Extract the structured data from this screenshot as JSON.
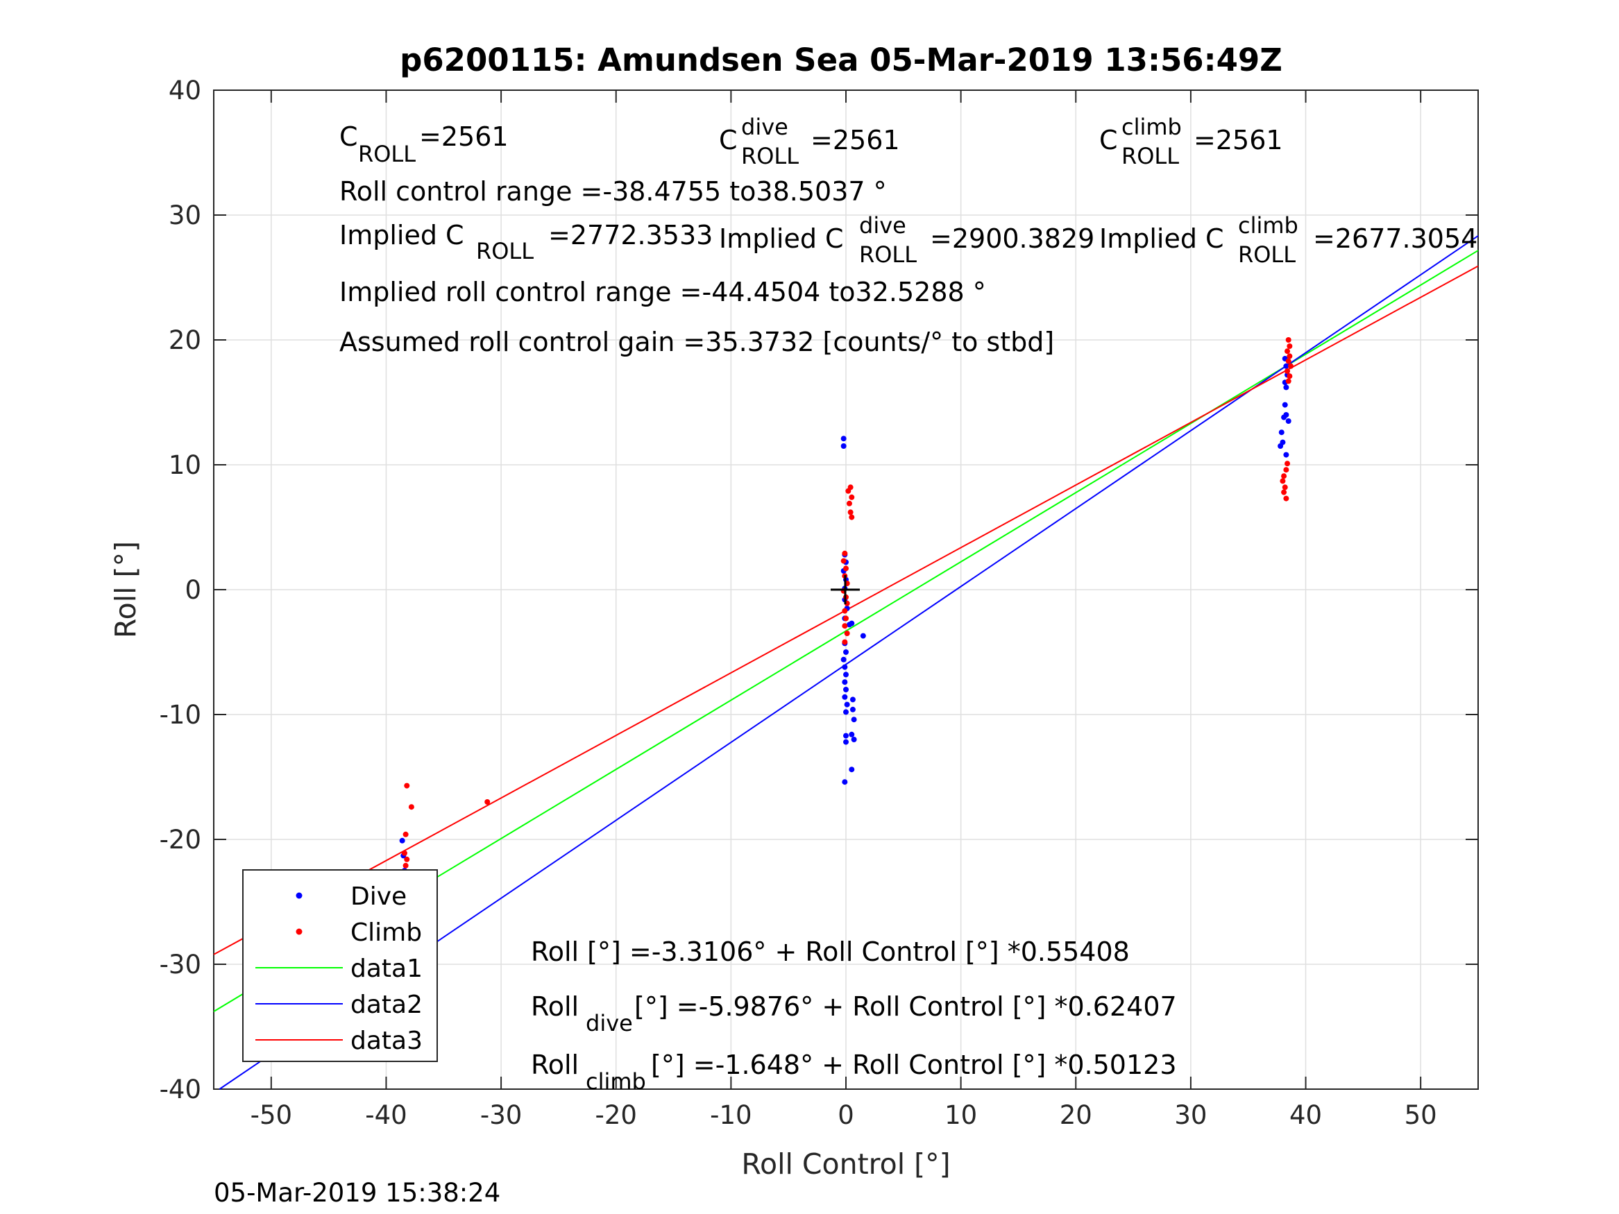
{
  "chart_data": {
    "type": "scatter",
    "title": "p6200115: Amundsen Sea 05-Mar-2019 13:56:49Z",
    "xlabel": "Roll Control [°]",
    "ylabel": "Roll [°]",
    "xlim": [
      -55,
      55
    ],
    "ylim": [
      -40,
      40
    ],
    "xticks": [
      "-50",
      "-40",
      "-30",
      "-20",
      "-10",
      "0",
      "10",
      "20",
      "30",
      "40",
      "50"
    ],
    "yticks": [
      "-40",
      "-30",
      "-20",
      "-10",
      "0",
      "10",
      "20",
      "30",
      "40"
    ],
    "grid": true,
    "legend_position": "bottom-left",
    "legend": [
      {
        "label": "Dive",
        "kind": "marker",
        "color": "#0000ff"
      },
      {
        "label": "Climb",
        "kind": "marker",
        "color": "#ff0000"
      },
      {
        "label": "data1",
        "kind": "line",
        "color": "#00ff00"
      },
      {
        "label": "data2",
        "kind": "line",
        "color": "#0000ff"
      },
      {
        "label": "data3",
        "kind": "line",
        "color": "#ff0000"
      }
    ],
    "fit_lines": [
      {
        "name": "data1",
        "color": "#00ff00",
        "intercept": -3.3106,
        "slope": 0.55408
      },
      {
        "name": "data2",
        "color": "#0000ff",
        "intercept": -5.9876,
        "slope": 0.62407
      },
      {
        "name": "data3",
        "color": "#ff0000",
        "intercept": -1.648,
        "slope": 0.50123
      }
    ],
    "series": [
      {
        "name": "Dive",
        "color": "#0000ff",
        "points": [
          [
            -38.6,
            -20.1
          ],
          [
            -38.5,
            -21.3
          ],
          [
            -38.4,
            -22.5
          ],
          [
            -38.6,
            -24.0
          ],
          [
            -38.5,
            -25.2
          ],
          [
            -38.4,
            -26.5
          ],
          [
            -38.6,
            -27.8
          ],
          [
            -38.2,
            -28.3
          ],
          [
            -38.5,
            -29.0
          ],
          [
            -38.7,
            -30.1
          ],
          [
            -38.4,
            -30.6
          ],
          [
            -38.5,
            -31.8
          ],
          [
            -38.6,
            -32.4
          ],
          [
            -38.4,
            -33.0
          ],
          [
            -38.5,
            -33.5
          ],
          [
            -38.6,
            -34.1
          ],
          [
            -38.4,
            -34.7
          ],
          [
            -38.5,
            -35.0
          ],
          [
            -0.2,
            12.1
          ],
          [
            -0.2,
            11.5
          ],
          [
            -0.1,
            2.8
          ],
          [
            0.0,
            2.2
          ],
          [
            -0.2,
            1.5
          ],
          [
            0.0,
            0.8
          ],
          [
            -0.1,
            0.1
          ],
          [
            -0.1,
            -0.8
          ],
          [
            0.1,
            -1.5
          ],
          [
            -0.1,
            -2.3
          ],
          [
            0.3,
            -2.8
          ],
          [
            0.5,
            -2.7
          ],
          [
            1.5,
            -3.7
          ],
          [
            -0.1,
            -4.3
          ],
          [
            0.0,
            -5.0
          ],
          [
            -0.2,
            -5.6
          ],
          [
            -0.1,
            -6.2
          ],
          [
            0.0,
            -6.8
          ],
          [
            -0.1,
            -7.4
          ],
          [
            0.0,
            -8.0
          ],
          [
            -0.1,
            -8.6
          ],
          [
            0.1,
            -9.2
          ],
          [
            0.0,
            -9.8
          ],
          [
            0.6,
            -8.8
          ],
          [
            0.6,
            -9.6
          ],
          [
            0.7,
            -10.4
          ],
          [
            0.5,
            -11.6
          ],
          [
            0.7,
            -12.0
          ],
          [
            0.0,
            -11.7
          ],
          [
            0.0,
            -12.2
          ],
          [
            0.5,
            -14.4
          ],
          [
            -0.1,
            -15.4
          ],
          [
            38.2,
            18.5
          ],
          [
            38.3,
            17.9
          ],
          [
            38.4,
            17.2
          ],
          [
            38.2,
            16.6
          ],
          [
            38.3,
            16.2
          ],
          [
            38.2,
            14.8
          ],
          [
            38.3,
            14.0
          ],
          [
            38.5,
            13.5
          ],
          [
            38.1,
            13.8
          ],
          [
            37.9,
            12.6
          ],
          [
            38.0,
            11.8
          ],
          [
            37.8,
            11.5
          ],
          [
            38.3,
            10.8
          ]
        ]
      },
      {
        "name": "Climb",
        "color": "#ff0000",
        "points": [
          [
            -38.2,
            -15.7
          ],
          [
            -37.8,
            -17.4
          ],
          [
            -38.3,
            -19.6
          ],
          [
            -38.4,
            -21.1
          ],
          [
            -38.2,
            -21.6
          ],
          [
            -38.3,
            -22.1
          ],
          [
            -38.5,
            -22.6
          ],
          [
            -38.2,
            -23.1
          ],
          [
            -38.4,
            -23.5
          ],
          [
            -38.3,
            -23.9
          ],
          [
            -38.5,
            -24.3
          ],
          [
            -38.2,
            -24.7
          ],
          [
            -38.4,
            -25.1
          ],
          [
            -38.1,
            -25.9
          ],
          [
            -31.2,
            -17.0
          ],
          [
            0.4,
            8.2
          ],
          [
            0.2,
            7.9
          ],
          [
            0.5,
            7.4
          ],
          [
            0.3,
            6.9
          ],
          [
            0.4,
            6.2
          ],
          [
            0.5,
            5.8
          ],
          [
            -0.1,
            2.9
          ],
          [
            -0.2,
            2.3
          ],
          [
            0.0,
            1.7
          ],
          [
            -0.1,
            1.1
          ],
          [
            0.1,
            0.5
          ],
          [
            -0.2,
            -0.1
          ],
          [
            0.0,
            -0.6
          ],
          [
            0.1,
            -1.1
          ],
          [
            -0.1,
            -1.7
          ],
          [
            0.0,
            -2.3
          ],
          [
            -0.1,
            -2.9
          ],
          [
            0.1,
            -3.5
          ],
          [
            -0.1,
            -4.2
          ],
          [
            38.5,
            20.0
          ],
          [
            38.6,
            19.5
          ],
          [
            38.4,
            19.1
          ],
          [
            38.6,
            18.7
          ],
          [
            38.5,
            18.3
          ],
          [
            38.7,
            17.9
          ],
          [
            38.4,
            17.5
          ],
          [
            38.6,
            17.1
          ],
          [
            38.5,
            16.7
          ],
          [
            38.4,
            10.1
          ],
          [
            38.3,
            9.6
          ],
          [
            38.1,
            9.1
          ],
          [
            38.0,
            8.7
          ],
          [
            38.2,
            8.2
          ],
          [
            38.1,
            7.8
          ],
          [
            38.3,
            7.3
          ]
        ]
      }
    ],
    "annotations": {
      "c_roll": {
        "main": "C",
        "sub": "ROLL",
        "value": "=2561"
      },
      "c_roll_dive": {
        "main": "C",
        "sup": "dive",
        "sub": "ROLL",
        "value": "=2561"
      },
      "c_roll_climb": {
        "main": "C",
        "sup": "climb",
        "sub": "ROLL",
        "value": "=2561"
      },
      "roll_control_range": "Roll control range =-38.4755 to38.5037 °",
      "implied_c_roll": {
        "main": "Implied C",
        "sub": "ROLL",
        "value": "=2772.3533"
      },
      "implied_c_roll_dive": {
        "main": "Implied C",
        "sup": "dive",
        "sub": "ROLL",
        "value": "=2900.3829"
      },
      "implied_c_roll_climb": {
        "main": "Implied C",
        "sup": "climb",
        "sub": "ROLL",
        "value": "=2677.3054"
      },
      "implied_range": "Implied roll control range =-44.4504 to32.5288 °",
      "gain": "Assumed roll control gain =35.3732 [counts/° to stbd]",
      "eq_all": "Roll [°] =-3.3106° + Roll Control [°] *0.55408",
      "eq_dive": {
        "main": "Roll",
        "sub": "dive",
        "rest": " [°] =-5.9876° + Roll Control [°] *0.62407"
      },
      "eq_climb": {
        "main": "Roll",
        "sub": "climb",
        "rest": " [°] =-1.648° + Roll Control [°] *0.50123"
      }
    },
    "timestamp": "05-Mar-2019 15:38:24"
  }
}
